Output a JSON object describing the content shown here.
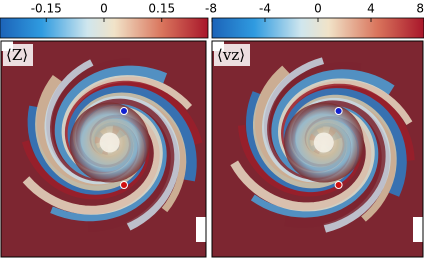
{
  "chart_data": [
    {
      "type": "heatmap",
      "label": "⟨Z⟩",
      "colorbar": {
        "xlim": [
          -0.27,
          0.27
        ],
        "xticks": [
          -0.15,
          0,
          0.15
        ]
      }
    },
    {
      "type": "heatmap",
      "label": "⟨vz⟩",
      "colorbar": {
        "xlim": [
          -8,
          8
        ],
        "xticks": [
          -8,
          -4,
          0,
          4,
          8
        ]
      }
    }
  ]
}
